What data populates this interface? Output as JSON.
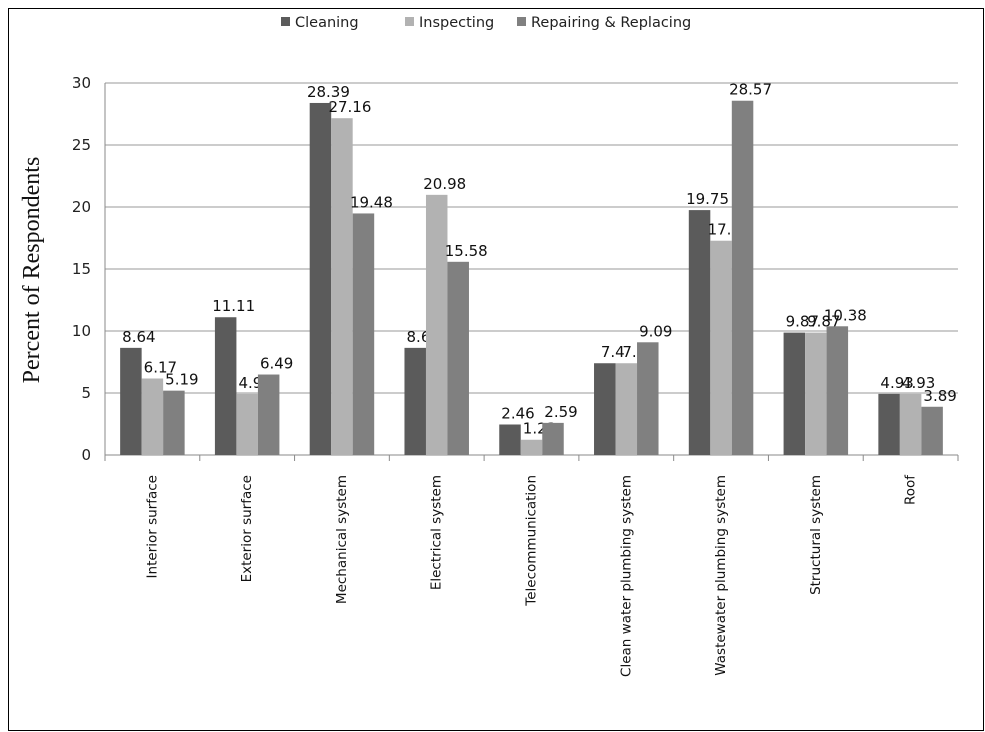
{
  "chart_data": {
    "type": "bar",
    "categories": [
      "Interior surface",
      "Exterior surface",
      "Mechanical system",
      "Electrical system",
      "Telecommunication",
      "Clean water plumbing system",
      "Wastewater plumbing system",
      "Structural system",
      "Roof"
    ],
    "series": [
      {
        "name": "Cleaning",
        "color": "#5b5b5b",
        "values": [
          8.64,
          11.11,
          28.39,
          8.64,
          2.46,
          7.4,
          19.75,
          9.87,
          4.93
        ]
      },
      {
        "name": "Inspecting",
        "color": "#b2b2b2",
        "values": [
          6.17,
          4.93,
          27.16,
          20.98,
          1.23,
          7.4,
          17.28,
          9.87,
          4.93
        ]
      },
      {
        "name": "Repairing & Replacing",
        "color": "#808080",
        "values": [
          5.19,
          6.49,
          19.48,
          15.58,
          2.59,
          9.09,
          28.57,
          10.38,
          3.89
        ]
      }
    ],
    "ylabel": "Percent of Respondents",
    "xlabel": "",
    "ylim": [
      0,
      30
    ],
    "yticks": [
      0,
      5,
      10,
      15,
      20,
      25,
      30
    ],
    "grid": true,
    "legend_position": "top"
  }
}
